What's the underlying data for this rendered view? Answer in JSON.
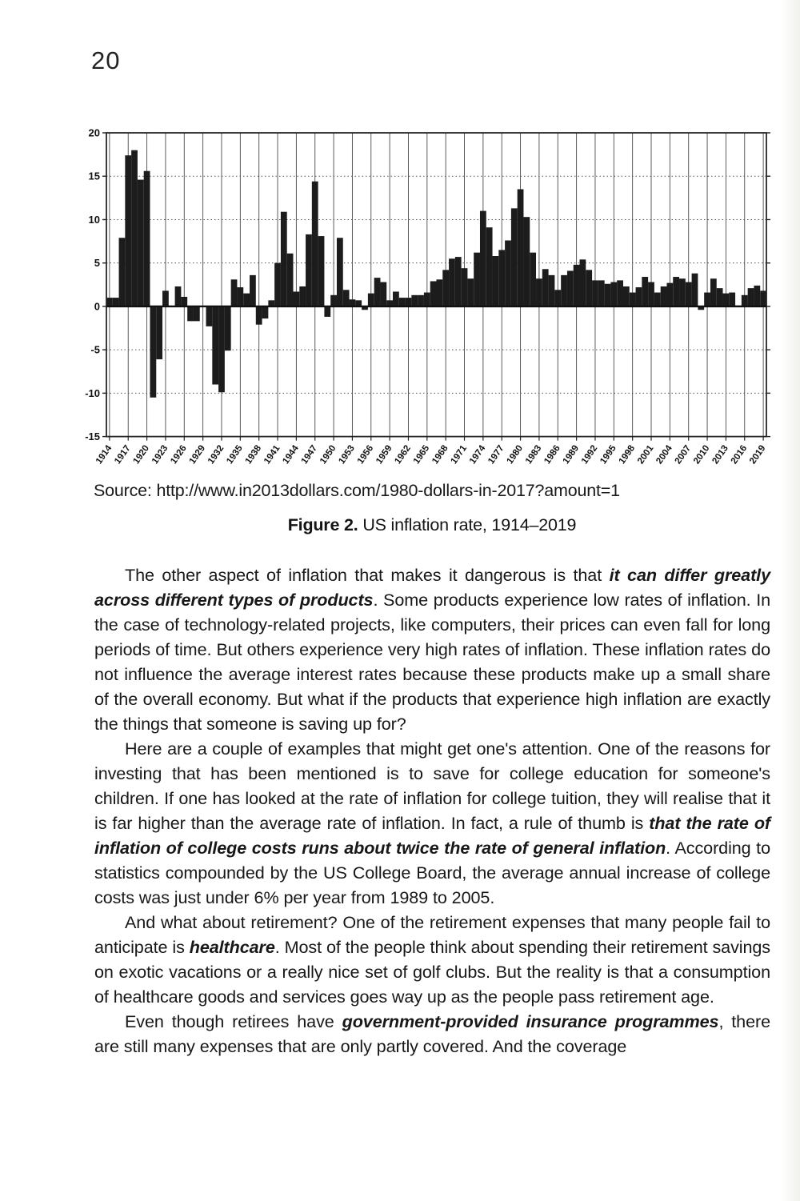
{
  "page": {
    "number": "20",
    "source_line": "Source: http://www.in2013dollars.com/1980-dollars-in-2017?amount=1",
    "caption_label": "Figure 2.",
    "caption_text": " US inflation rate, 1914–2019"
  },
  "chart_data": {
    "type": "bar",
    "title": "US inflation rate, 1914–2019",
    "xlabel": "",
    "ylabel": "",
    "x_start_year": 1914,
    "x_end_year": 2019,
    "x": [
      1914,
      1915,
      1916,
      1917,
      1918,
      1919,
      1920,
      1921,
      1922,
      1923,
      1924,
      1925,
      1926,
      1927,
      1928,
      1929,
      1930,
      1931,
      1932,
      1933,
      1934,
      1935,
      1936,
      1937,
      1938,
      1939,
      1940,
      1941,
      1942,
      1943,
      1944,
      1945,
      1946,
      1947,
      1948,
      1949,
      1950,
      1951,
      1952,
      1953,
      1954,
      1955,
      1956,
      1957,
      1958,
      1959,
      1960,
      1961,
      1962,
      1963,
      1964,
      1965,
      1966,
      1967,
      1968,
      1969,
      1970,
      1971,
      1972,
      1973,
      1974,
      1975,
      1976,
      1977,
      1978,
      1979,
      1980,
      1981,
      1982,
      1983,
      1984,
      1985,
      1986,
      1987,
      1988,
      1989,
      1990,
      1991,
      1992,
      1993,
      1994,
      1995,
      1996,
      1997,
      1998,
      1999,
      2000,
      2001,
      2002,
      2003,
      2004,
      2005,
      2006,
      2007,
      2008,
      2009,
      2010,
      2011,
      2012,
      2013,
      2014,
      2015,
      2016,
      2017,
      2018,
      2019
    ],
    "values": [
      1.0,
      1.0,
      7.9,
      17.4,
      18.0,
      14.6,
      15.6,
      -10.5,
      -6.1,
      1.8,
      0.0,
      2.3,
      1.1,
      -1.7,
      -1.7,
      0.0,
      -2.3,
      -9.0,
      -9.9,
      -5.1,
      3.1,
      2.2,
      1.5,
      3.6,
      -2.1,
      -1.4,
      0.7,
      5.0,
      10.9,
      6.1,
      1.7,
      2.3,
      8.3,
      14.4,
      8.1,
      -1.2,
      1.3,
      7.9,
      1.9,
      0.8,
      0.7,
      -0.4,
      1.5,
      3.3,
      2.8,
      0.7,
      1.7,
      1.0,
      1.0,
      1.3,
      1.3,
      1.6,
      2.9,
      3.1,
      4.2,
      5.5,
      5.7,
      4.4,
      3.2,
      6.2,
      11.0,
      9.1,
      5.8,
      6.5,
      7.6,
      11.3,
      13.5,
      10.3,
      6.2,
      3.2,
      4.3,
      3.6,
      1.9,
      3.6,
      4.1,
      4.8,
      5.4,
      4.2,
      3.0,
      3.0,
      2.6,
      2.8,
      3.0,
      2.3,
      1.6,
      2.2,
      3.4,
      2.8,
      1.6,
      2.3,
      2.7,
      3.4,
      3.2,
      2.8,
      3.8,
      -0.4,
      1.6,
      3.2,
      2.1,
      1.5,
      1.6,
      0.1,
      1.3,
      2.1,
      2.4,
      1.8
    ],
    "ylim": [
      -15,
      20
    ],
    "yticks": [
      20,
      15,
      10,
      5,
      0,
      -5,
      -10,
      -15
    ],
    "xtick_step": 3,
    "xtick_labels": [
      "1914",
      "1917",
      "1920",
      "1923",
      "1926",
      "1929",
      "1932",
      "1935",
      "1938",
      "1941",
      "1944",
      "1947",
      "1950",
      "1953",
      "1956",
      "1959",
      "1962",
      "1965",
      "1968",
      "1971",
      "1974",
      "1977",
      "1980",
      "1983",
      "1986",
      "1989",
      "1992",
      "1995",
      "1998",
      "2001",
      "2004",
      "2007",
      "2010",
      "2013",
      "2016",
      "2019"
    ],
    "grid": true,
    "legend": "none",
    "bar_color": "#1c1c1c",
    "grid_color": "#555555",
    "axis_color": "#262626"
  },
  "paragraphs": [
    {
      "runs": [
        {
          "t": "The other aspect of inflation that makes it dangerous is that ",
          "b": false
        },
        {
          "t": "it can differ greatly across different types of products",
          "b": true
        },
        {
          "t": ". Some products experience low rates of inflation. In the case of technology-related projects, like computers, their prices can even fall for long periods of time. But others experience very high rates of inflation. These inflation rates do not influence the average interest rates because these products make up a small share of the overall economy. But what if the products that experience high inflation are exactly the things that someone is saving up for?",
          "b": false
        }
      ]
    },
    {
      "runs": [
        {
          "t": "Here are a couple of examples that might get one's attention. One of the reasons for investing that has been mentioned is to save for college education for someone's children. If one has looked at the rate of inflation for college tuition, they will realise that it is far higher than the average rate of inflation. In fact, a rule of thumb is ",
          "b": false
        },
        {
          "t": "that the rate of inflation of college costs runs about twice the rate of general inflation",
          "b": true
        },
        {
          "t": ". According to statistics compounded by the US College Board, the average annual increase of college costs was just under 6% per year from 1989 to 2005.",
          "b": false
        }
      ]
    },
    {
      "runs": [
        {
          "t": "And what about retirement? One of the retirement expenses that many people fail to anticipate is ",
          "b": false
        },
        {
          "t": "healthcare",
          "b": true
        },
        {
          "t": ". Most of the people think about spending their retirement savings on exotic vacations or a really nice set of golf clubs. But the reality is that a consumption of healthcare goods and services goes way up as the people pass retirement age.",
          "b": false
        }
      ]
    },
    {
      "runs": [
        {
          "t": "Even though retirees have ",
          "b": false
        },
        {
          "t": "government-provided insurance programmes",
          "b": true
        },
        {
          "t": ", there are still many expenses that are only partly covered. And the coverage",
          "b": false
        }
      ]
    }
  ]
}
